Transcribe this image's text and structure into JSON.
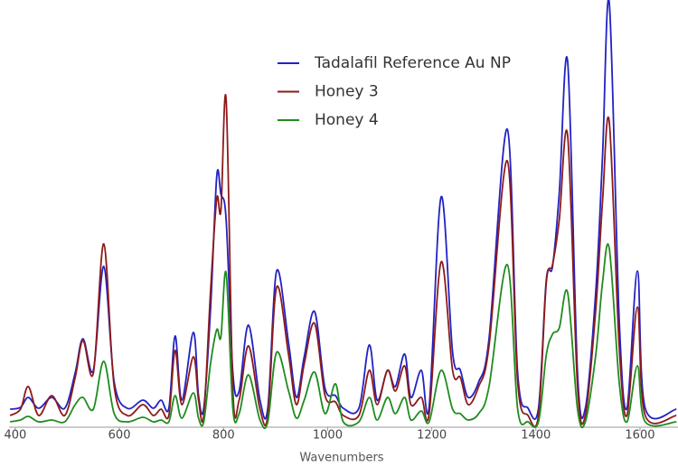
{
  "chart_data": {
    "type": "line",
    "x_label": "Wavenumbers",
    "x": [
      390,
      410,
      425,
      445,
      470,
      495,
      515,
      530,
      550,
      570,
      590,
      615,
      645,
      665,
      680,
      695,
      707,
      720,
      742,
      752,
      762,
      775,
      787,
      795,
      805,
      818,
      830,
      848,
      870,
      885,
      902,
      925,
      940,
      955,
      975,
      995,
      1015,
      1030,
      1060,
      1080,
      1095,
      1115,
      1130,
      1148,
      1160,
      1180,
      1195,
      1218,
      1240,
      1255,
      1270,
      1290,
      1310,
      1345,
      1365,
      1385,
      1405,
      1420,
      1432,
      1445,
      1461,
      1480,
      1495,
      1515,
      1528,
      1541,
      1560,
      1575,
      1595,
      1610,
      1670
    ],
    "series": [
      {
        "name": "Tadalafil Reference Au NP",
        "color": "#2222c4",
        "values": [
          20,
          22,
          33,
          21,
          33,
          21,
          60,
          98,
          63,
          178,
          50,
          21,
          30,
          21,
          30,
          21,
          101,
          30,
          105,
          35,
          21,
          130,
          278,
          258,
          230,
          60,
          40,
          113,
          30,
          21,
          173,
          93,
          33,
          78,
          128,
          43,
          35,
          21,
          21,
          91,
          30,
          63,
          45,
          81,
          33,
          63,
          23,
          255,
          83,
          63,
          33,
          50,
          98,
          330,
          60,
          21,
          21,
          163,
          178,
          260,
          405,
          60,
          21,
          150,
          300,
          470,
          120,
          21,
          173,
          21,
          20
        ]
      },
      {
        "name": "Honey 3",
        "color": "#8e1b1b",
        "values": [
          13,
          20,
          45,
          13,
          35,
          13,
          55,
          96,
          60,
          203,
          45,
          13,
          25,
          13,
          20,
          13,
          85,
          25,
          78,
          30,
          13,
          150,
          253,
          240,
          363,
          40,
          30,
          90,
          20,
          13,
          155,
          80,
          25,
          70,
          115,
          35,
          28,
          13,
          13,
          63,
          25,
          63,
          40,
          68,
          25,
          33,
          15,
          183,
          63,
          55,
          25,
          45,
          90,
          295,
          50,
          13,
          13,
          160,
          180,
          230,
          323,
          45,
          13,
          130,
          250,
          338,
          90,
          13,
          133,
          13,
          13
        ]
      },
      {
        "name": "Honey 4",
        "color": "#1f8c1f",
        "values": [
          6,
          8,
          12,
          6,
          8,
          6,
          25,
          33,
          20,
          73,
          15,
          6,
          11,
          6,
          8,
          6,
          35,
          10,
          38,
          10,
          6,
          70,
          108,
          100,
          171,
          20,
          15,
          58,
          8,
          6,
          83,
          40,
          10,
          30,
          61,
          15,
          48,
          6,
          6,
          33,
          8,
          33,
          15,
          33,
          8,
          18,
          6,
          63,
          20,
          15,
          8,
          15,
          45,
          180,
          20,
          6,
          6,
          80,
          103,
          110,
          149,
          20,
          6,
          80,
          160,
          198,
          50,
          6,
          68,
          6,
          6
        ]
      }
    ],
    "xlim": [
      388,
      1673
    ],
    "ylim": [
      0,
      473
    ],
    "xticks": [
      400,
      600,
      800,
      1000,
      1200,
      1400,
      1600
    ],
    "legend": "top-center"
  }
}
